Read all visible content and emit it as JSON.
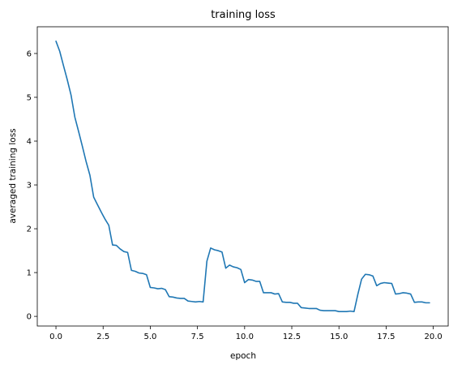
{
  "chart_data": {
    "type": "line",
    "title": "training loss",
    "xlabel": "epoch",
    "ylabel": "averaged training loss",
    "xlim": [
      -0.99,
      20.79
    ],
    "ylim": [
      -0.22,
      6.61
    ],
    "xticks": [
      0.0,
      2.5,
      5.0,
      7.5,
      10.0,
      12.5,
      15.0,
      17.5,
      20.0
    ],
    "xtick_labels": [
      "0.0",
      "2.5",
      "5.0",
      "7.5",
      "10.0",
      "12.5",
      "15.0",
      "17.5",
      "20.0"
    ],
    "yticks": [
      0,
      1,
      2,
      3,
      4,
      5,
      6
    ],
    "ytick_labels": [
      "0",
      "1",
      "2",
      "3",
      "4",
      "5",
      "6"
    ],
    "grid": false,
    "line_color": "#1f77b4",
    "series": [
      {
        "x": [
          0.0,
          0.2,
          0.4,
          0.6,
          0.8,
          1.0,
          1.2,
          1.4,
          1.6,
          1.8,
          2.0,
          2.2,
          2.4,
          2.6,
          2.8,
          3.0,
          3.2,
          3.4,
          3.6,
          3.8,
          4.0,
          4.2,
          4.4,
          4.6,
          4.8,
          5.0,
          5.2,
          5.4,
          5.6,
          5.8,
          6.0,
          6.2,
          6.4,
          6.6,
          6.8,
          7.0,
          7.2,
          7.4,
          7.6,
          7.8,
          8.0,
          8.2,
          8.4,
          8.6,
          8.8,
          9.0,
          9.2,
          9.4,
          9.6,
          9.8,
          10.0,
          10.2,
          10.4,
          10.6,
          10.8,
          11.0,
          11.2,
          11.4,
          11.6,
          11.8,
          12.0,
          12.2,
          12.4,
          12.6,
          12.8,
          13.0,
          13.2,
          13.4,
          13.6,
          13.8,
          14.0,
          14.2,
          14.4,
          14.6,
          14.8,
          15.0,
          15.2,
          15.4,
          15.6,
          15.8,
          16.0,
          16.2,
          16.4,
          16.6,
          16.8,
          17.0,
          17.2,
          17.4,
          17.6,
          17.8,
          18.0,
          18.2,
          18.4,
          18.6,
          18.8,
          19.0,
          19.2,
          19.4,
          19.6,
          19.8
        ],
        "y": [
          6.28,
          6.05,
          5.72,
          5.4,
          5.05,
          4.55,
          4.22,
          3.88,
          3.53,
          3.22,
          2.72,
          2.55,
          2.38,
          2.22,
          2.08,
          1.63,
          1.62,
          1.54,
          1.48,
          1.46,
          1.05,
          1.03,
          0.99,
          0.98,
          0.95,
          0.66,
          0.65,
          0.63,
          0.64,
          0.61,
          0.45,
          0.44,
          0.42,
          0.41,
          0.41,
          0.35,
          0.34,
          0.33,
          0.34,
          0.33,
          1.26,
          1.56,
          1.52,
          1.5,
          1.47,
          1.1,
          1.17,
          1.13,
          1.11,
          1.07,
          0.77,
          0.84,
          0.83,
          0.8,
          0.8,
          0.54,
          0.54,
          0.54,
          0.51,
          0.52,
          0.33,
          0.32,
          0.32,
          0.3,
          0.3,
          0.2,
          0.19,
          0.18,
          0.18,
          0.18,
          0.14,
          0.13,
          0.13,
          0.13,
          0.13,
          0.11,
          0.11,
          0.11,
          0.12,
          0.11,
          0.5,
          0.85,
          0.96,
          0.95,
          0.92,
          0.7,
          0.75,
          0.77,
          0.76,
          0.75,
          0.51,
          0.52,
          0.54,
          0.53,
          0.51,
          0.32,
          0.33,
          0.33,
          0.31,
          0.31
        ]
      }
    ]
  }
}
